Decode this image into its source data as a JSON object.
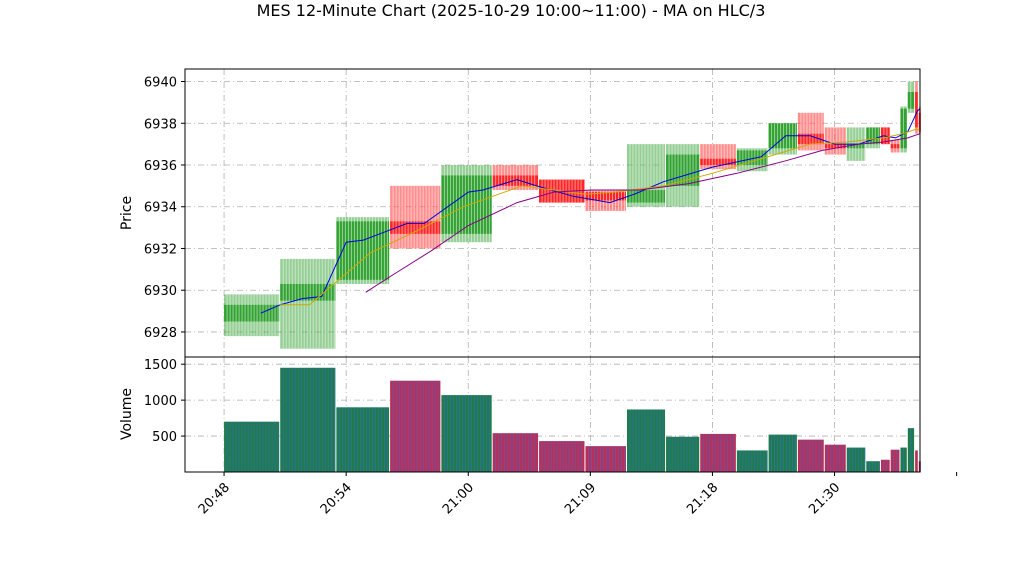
{
  "chart_data": {
    "type": "candlestick",
    "title": "MES 12-Minute Chart (2025-10-29 10:00~11:00) - MA on HLC/3",
    "price_panel": {
      "ylabel": "Price",
      "ylim": [
        6926.8,
        6940.6
      ],
      "yticks": [
        6928,
        6930,
        6932,
        6934,
        6936,
        6938,
        6940
      ],
      "grid": true
    },
    "volume_panel": {
      "ylabel": "Volume",
      "ylim": [
        0,
        1600
      ],
      "yticks": [
        500,
        1000,
        1500
      ],
      "grid": true
    },
    "xlim": [
      -1.6,
      28.5
    ],
    "xticks": [
      {
        "x": 0,
        "label": "20:48"
      },
      {
        "x": 5,
        "label": "20:54"
      },
      {
        "x": 10,
        "label": "21:00"
      },
      {
        "x": 15,
        "label": "21:09"
      },
      {
        "x": 20,
        "label": "21:18"
      },
      {
        "x": 25,
        "label": "21:30"
      },
      {
        "x": 30,
        "label": ""
      }
    ],
    "colors": {
      "up": "#2ca02c",
      "down": "#ff2020",
      "volume_up": "#1f7a4d",
      "volume_down": "#b5305a",
      "ma_fast": "#0000dd",
      "ma_mid": "#ccaa00",
      "ma_slow": "#880088"
    },
    "candles": [
      {
        "x": 0.0,
        "open": 6928.5,
        "high": 6929.8,
        "low": 6927.8,
        "close": 6929.3,
        "volume": 700,
        "up": true
      },
      {
        "x": 2.3,
        "open": 6929.5,
        "high": 6931.5,
        "low": 6927.2,
        "close": 6930.3,
        "volume": 1450,
        "up": true
      },
      {
        "x": 4.6,
        "open": 6930.5,
        "high": 6933.5,
        "low": 6930.3,
        "close": 6933.3,
        "volume": 900,
        "up": true
      },
      {
        "x": 6.8,
        "open": 6933.3,
        "high": 6935.0,
        "low": 6932.0,
        "close": 6932.7,
        "volume": 1270,
        "up": false
      },
      {
        "x": 8.9,
        "open": 6932.7,
        "high": 6936.0,
        "low": 6932.3,
        "close": 6935.5,
        "volume": 1070,
        "up": true
      },
      {
        "x": 11.0,
        "open": 6935.5,
        "high": 6936.0,
        "low": 6934.8,
        "close": 6935.0,
        "volume": 540,
        "up": false
      },
      {
        "x": 12.9,
        "open": 6935.3,
        "high": 6935.3,
        "low": 6934.2,
        "close": 6934.2,
        "volume": 430,
        "up": false
      },
      {
        "x": 14.8,
        "open": 6934.7,
        "high": 6934.8,
        "low": 6933.8,
        "close": 6934.3,
        "volume": 360,
        "up": false
      },
      {
        "x": 16.5,
        "open": 6934.2,
        "high": 6937.0,
        "low": 6934.0,
        "close": 6934.8,
        "volume": 870,
        "up": true
      },
      {
        "x": 18.1,
        "open": 6935.0,
        "high": 6937.0,
        "low": 6934.0,
        "close": 6936.5,
        "volume": 490,
        "up": true
      },
      {
        "x": 19.5,
        "open": 6936.3,
        "high": 6937.0,
        "low": 6935.8,
        "close": 6936.0,
        "volume": 530,
        "up": false
      },
      {
        "x": 21.0,
        "open": 6936.0,
        "high": 6936.8,
        "low": 6935.7,
        "close": 6936.7,
        "volume": 300,
        "up": true
      },
      {
        "x": 22.3,
        "open": 6936.8,
        "high": 6938.0,
        "low": 6936.5,
        "close": 6938.0,
        "volume": 520,
        "up": true
      },
      {
        "x": 23.5,
        "open": 6937.5,
        "high": 6938.5,
        "low": 6936.7,
        "close": 6937.0,
        "volume": 450,
        "up": false
      },
      {
        "x": 24.6,
        "open": 6937.0,
        "high": 6937.8,
        "low": 6936.5,
        "close": 6936.8,
        "volume": 380,
        "up": false
      },
      {
        "x": 25.5,
        "open": 6936.8,
        "high": 6937.8,
        "low": 6936.2,
        "close": 6937.0,
        "volume": 340,
        "up": true
      },
      {
        "x": 26.3,
        "open": 6937.0,
        "high": 6937.8,
        "low": 6936.8,
        "close": 6937.8,
        "volume": 150,
        "up": true
      },
      {
        "x": 26.9,
        "open": 6937.8,
        "high": 6937.8,
        "low": 6937.0,
        "close": 6937.0,
        "volume": 170,
        "up": false
      },
      {
        "x": 27.3,
        "open": 6937.0,
        "high": 6937.2,
        "low": 6936.6,
        "close": 6936.8,
        "volume": 310,
        "up": false
      },
      {
        "x": 27.7,
        "open": 6936.8,
        "high": 6938.8,
        "low": 6936.6,
        "close": 6938.7,
        "volume": 340,
        "up": true
      },
      {
        "x": 28.0,
        "open": 6938.7,
        "high": 6940.0,
        "low": 6938.5,
        "close": 6939.5,
        "volume": 610,
        "up": true
      },
      {
        "x": 28.3,
        "open": 6939.5,
        "high": 6940.0,
        "low": 6937.5,
        "close": 6937.8,
        "volume": 300,
        "up": false
      },
      {
        "x": 28.45,
        "open": 6938.5,
        "high": 6938.8,
        "low": 6937.5,
        "close": 6937.6,
        "volume": 150,
        "up": false
      }
    ],
    "series": [
      {
        "name": "ma_fast",
        "points": [
          [
            1.5,
            6928.9
          ],
          [
            2.3,
            6929.3
          ],
          [
            3.2,
            6929.6
          ],
          [
            4.0,
            6929.7
          ],
          [
            5.0,
            6932.3
          ],
          [
            5.7,
            6932.4
          ],
          [
            7.5,
            6933.2
          ],
          [
            8.2,
            6933.2
          ],
          [
            10.0,
            6934.7
          ],
          [
            10.6,
            6934.8
          ],
          [
            12.0,
            6935.3
          ],
          [
            12.8,
            6935.0
          ],
          [
            14.3,
            6934.5
          ],
          [
            15.8,
            6934.2
          ],
          [
            16.8,
            6934.6
          ],
          [
            18.0,
            6935.2
          ],
          [
            20.0,
            6935.9
          ],
          [
            22.0,
            6936.4
          ],
          [
            23.0,
            6937.4
          ],
          [
            24.0,
            6937.4
          ],
          [
            25.0,
            6937.0
          ],
          [
            26.0,
            6937.0
          ],
          [
            27.0,
            6937.4
          ],
          [
            27.5,
            6937.3
          ],
          [
            28.0,
            6937.6
          ],
          [
            28.4,
            6938.6
          ],
          [
            28.5,
            6938.7
          ]
        ]
      },
      {
        "name": "ma_mid",
        "points": [
          [
            2.3,
            6929.3
          ],
          [
            3.5,
            6929.3
          ],
          [
            4.6,
            6930.4
          ],
          [
            6.0,
            6931.8
          ],
          [
            8.0,
            6932.9
          ],
          [
            9.8,
            6934.0
          ],
          [
            11.0,
            6934.5
          ],
          [
            12.2,
            6935.0
          ],
          [
            13.5,
            6934.8
          ],
          [
            14.8,
            6934.6
          ],
          [
            16.0,
            6934.7
          ],
          [
            18.0,
            6935.0
          ],
          [
            20.0,
            6935.6
          ],
          [
            22.0,
            6936.3
          ],
          [
            24.0,
            6937.0
          ],
          [
            25.5,
            6937.1
          ],
          [
            27.0,
            6937.3
          ],
          [
            27.8,
            6937.5
          ],
          [
            28.3,
            6937.7
          ],
          [
            28.5,
            6937.7
          ]
        ]
      },
      {
        "name": "ma_slow",
        "points": [
          [
            5.8,
            6929.9
          ],
          [
            7.0,
            6930.8
          ],
          [
            8.5,
            6931.9
          ],
          [
            10.0,
            6933.1
          ],
          [
            12.0,
            6934.2
          ],
          [
            13.5,
            6934.7
          ],
          [
            15.0,
            6934.8
          ],
          [
            17.0,
            6934.8
          ],
          [
            19.0,
            6935.1
          ],
          [
            21.0,
            6935.6
          ],
          [
            23.0,
            6936.2
          ],
          [
            24.5,
            6936.7
          ],
          [
            26.0,
            6937.0
          ],
          [
            27.0,
            6937.1
          ],
          [
            28.0,
            6937.3
          ],
          [
            28.5,
            6937.5
          ]
        ]
      }
    ]
  }
}
